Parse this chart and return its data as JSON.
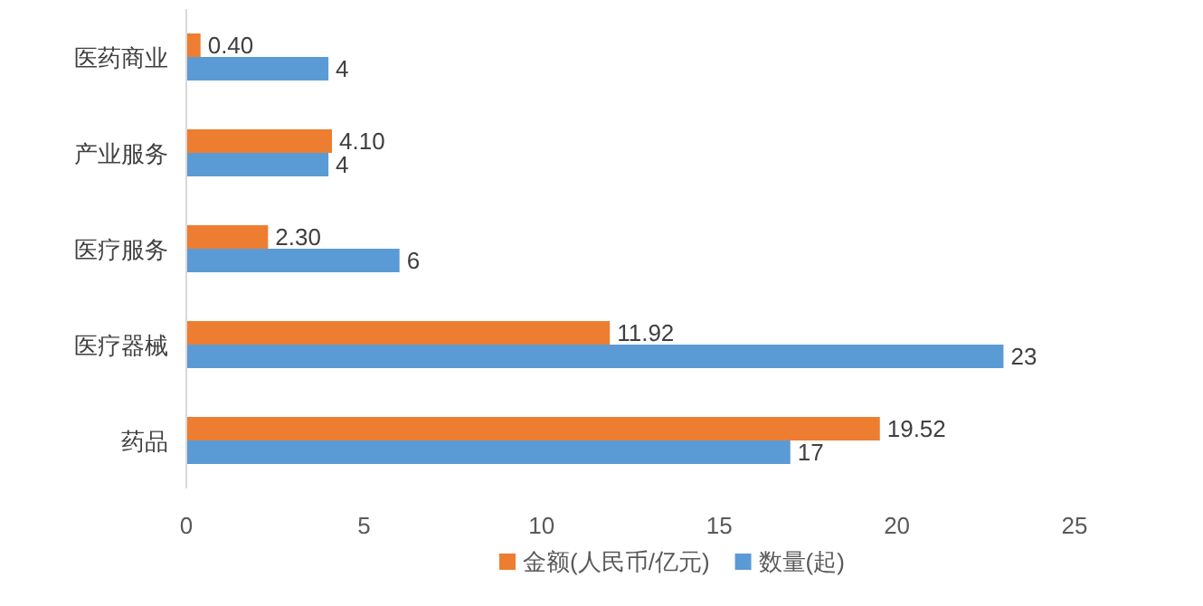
{
  "chart_data": {
    "type": "bar",
    "orientation": "horizontal",
    "categories": [
      "医药商业",
      "产业服务",
      "医疗服务",
      "医疗器械",
      "药品"
    ],
    "series": [
      {
        "name": "金额(人民币/亿元)",
        "color": "#ed7d31",
        "values": [
          0.4,
          4.1,
          2.3,
          11.92,
          19.52
        ],
        "value_labels": [
          "0.40",
          "4.10",
          "2.30",
          "11.92",
          "19.52"
        ]
      },
      {
        "name": "数量(起)",
        "color": "#5b9bd5",
        "values": [
          4,
          4,
          6,
          23,
          17
        ],
        "value_labels": [
          "4",
          "4",
          "6",
          "23",
          "17"
        ]
      }
    ],
    "xlim": [
      0,
      25
    ],
    "xticks": [
      0,
      5,
      10,
      15,
      20,
      25
    ],
    "legend": "bottom"
  }
}
